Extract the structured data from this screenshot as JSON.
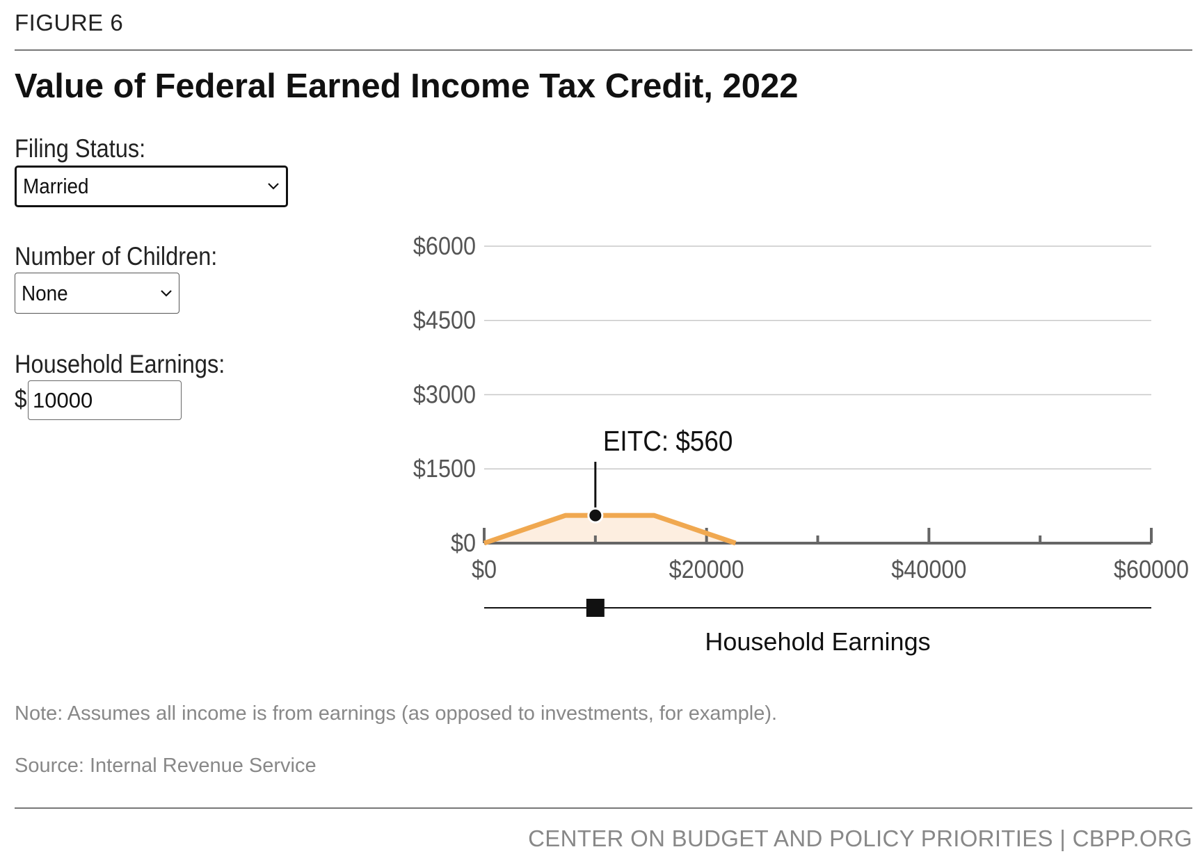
{
  "figure_label": "FIGURE 6",
  "title": "Value of Federal Earned Income Tax Credit, 2022",
  "controls": {
    "filing_status": {
      "label": "Filing Status:",
      "value": "Married",
      "icon": "chevron-down-icon"
    },
    "children": {
      "label": "Number of Children:",
      "value": "None",
      "icon": "chevron-down-icon"
    },
    "earnings": {
      "label": "Household Earnings:",
      "currency_symbol": "$",
      "value": "10000"
    }
  },
  "chart_data": {
    "type": "area",
    "title": "",
    "xlabel": "Household Earnings",
    "ylabel": "",
    "xlim": [
      0,
      60000
    ],
    "ylim": [
      0,
      6000
    ],
    "x_ticks": [
      0,
      20000,
      40000,
      60000
    ],
    "x_tick_labels": [
      "$0",
      "$20000",
      "$40000",
      "$60000"
    ],
    "x_minor_ticks": [
      10000,
      30000,
      50000
    ],
    "y_ticks": [
      0,
      1500,
      3000,
      4500,
      6000
    ],
    "y_tick_labels": [
      "$0",
      "$1500",
      "$3000",
      "$4500",
      "$6000"
    ],
    "grid": true,
    "series": [
      {
        "x": [
          0,
          7300,
          15290,
          22610
        ],
        "y": [
          0,
          560,
          560,
          0
        ],
        "color": "#f0a850",
        "fill": "#fdeee0"
      }
    ],
    "marker": {
      "x": 10000,
      "y": 560,
      "label": "EITC: $560"
    },
    "slider": {
      "value": 10000
    }
  },
  "note": "Note: Assumes all income is from earnings (as opposed to investments, for example).",
  "source": "Source: Internal Revenue Service",
  "footer": "CENTER ON BUDGET AND POLICY PRIORITIES | CBPP.ORG"
}
